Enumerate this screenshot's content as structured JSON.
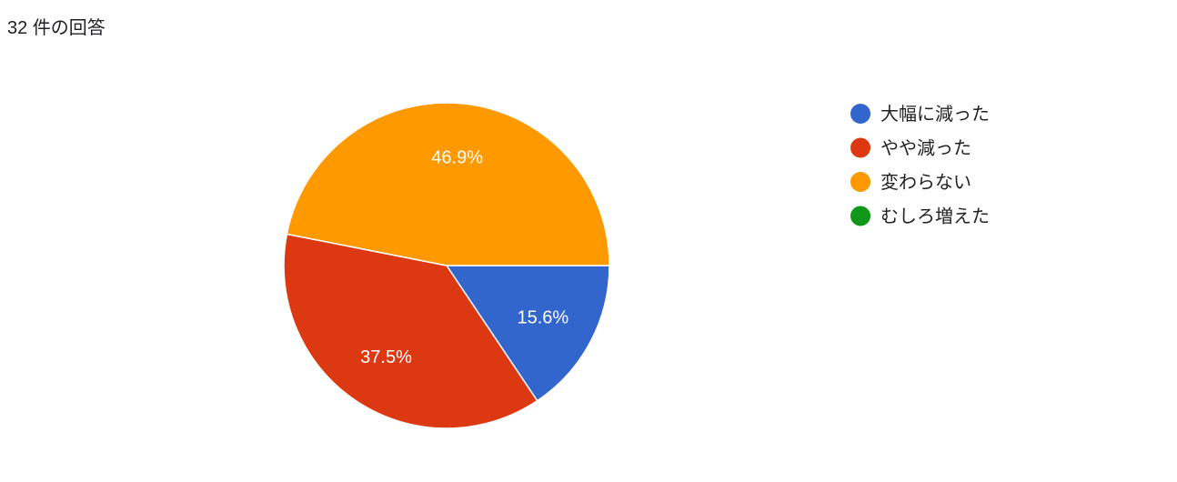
{
  "header": {
    "response_count": "32 件の回答"
  },
  "chart_data": {
    "type": "pie",
    "categories": [
      "大幅に減った",
      "やや減った",
      "変わらない",
      "むしろ増えた"
    ],
    "values": [
      15.6,
      37.5,
      46.9,
      0
    ],
    "labels": [
      "15.6%",
      "37.5%",
      "46.9%",
      ""
    ],
    "colors": [
      "#3366cc",
      "#dc3912",
      "#ff9900",
      "#109618"
    ],
    "legend_position": "right"
  }
}
